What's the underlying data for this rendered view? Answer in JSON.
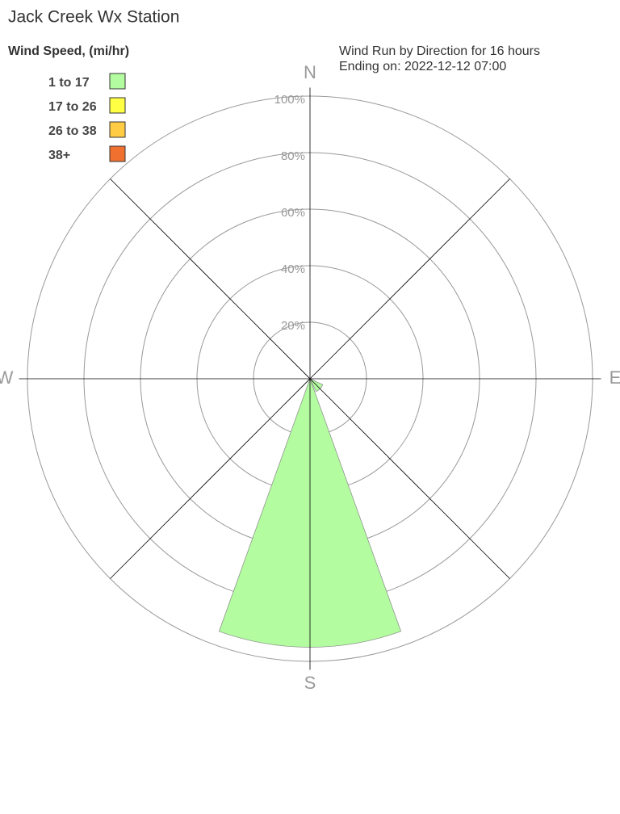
{
  "chart_data": {
    "type": "windrose",
    "title": "Jack Creek Wx Station",
    "legend_title": "Wind Speed, (mi/hr)",
    "subtitle": [
      "Wind Run by Direction for 16 hours",
      "Ending on: 2022-12-12 07:00"
    ],
    "categories": [
      "N",
      null,
      "E",
      null,
      "S",
      null,
      "W",
      null
    ],
    "series": [
      {
        "name": "1 to 17",
        "color": "#b3fca0",
        "values": [
          0,
          0,
          0,
          5,
          95,
          0,
          0,
          0
        ]
      },
      {
        "name": "17 to 26",
        "color": "#ffff44",
        "values": [
          0,
          0,
          0,
          0,
          0,
          0,
          0,
          0
        ]
      },
      {
        "name": "26 to 38",
        "color": "#ffcc44",
        "values": [
          0,
          0,
          0,
          0,
          0,
          0,
          0,
          0
        ]
      },
      {
        "name": "38+",
        "color": "#f07030",
        "values": [
          0,
          0,
          0,
          0,
          0,
          0,
          0,
          0
        ]
      }
    ],
    "rlim": [
      0,
      100
    ],
    "rticks": [
      {
        "value": 20,
        "label": "20%"
      },
      {
        "value": 40,
        "label": "40%"
      },
      {
        "value": 60,
        "label": "60%"
      },
      {
        "value": 80,
        "label": "80%"
      },
      {
        "value": 100,
        "label": "100%"
      }
    ],
    "grid": true
  }
}
